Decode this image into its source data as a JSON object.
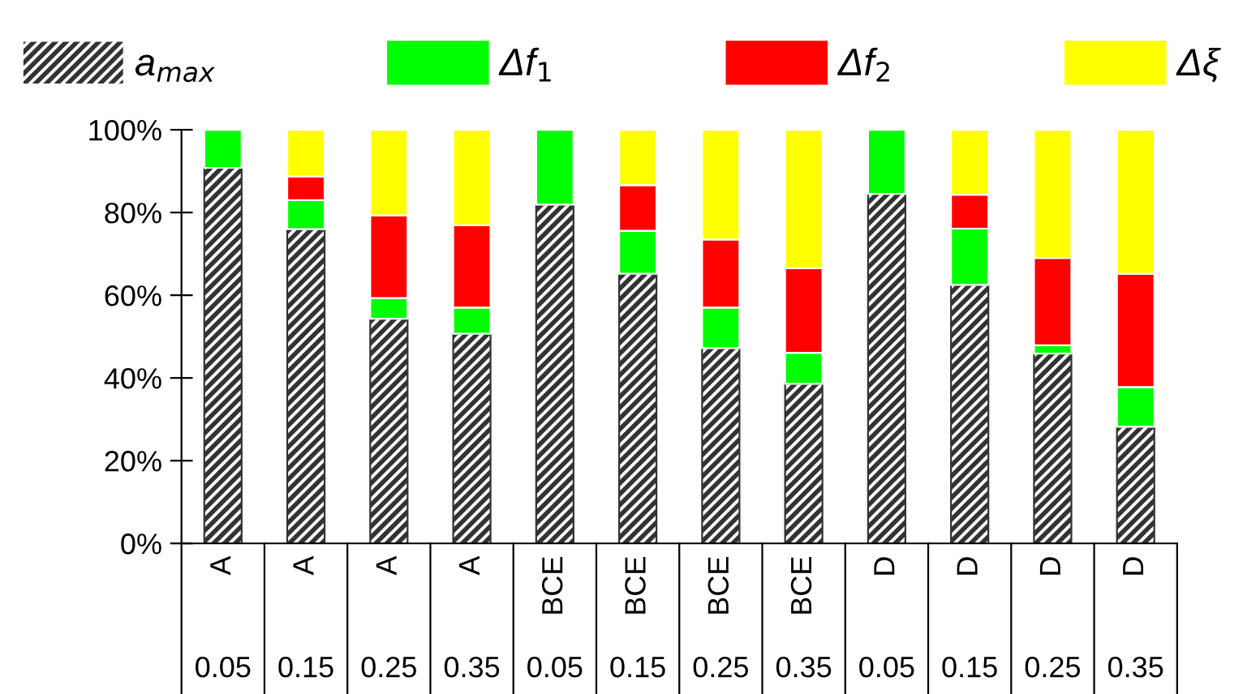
{
  "chart_data": {
    "type": "bar",
    "stacked": true,
    "categories": [
      "A\n0.05",
      "A\n0.15",
      "A\n0.25",
      "A\n0.35",
      "BCE\n0.05",
      "BCE\n0.15",
      "BCE\n0.25",
      "BCE\n0.35",
      "D\n0.05",
      "D\n0.15",
      "D\n0.25",
      "D\n0.35"
    ],
    "series": [
      {
        "name": "a$_{max}$",
        "color": "#333333",
        "values": [
          90.8,
          76.0,
          54.3,
          50.7,
          81.9,
          65.2,
          47.2,
          38.6,
          84.5,
          62.5,
          45.9,
          28.2
        ]
      },
      {
        "name": "Δf$_{1}$",
        "color": "#00ff00",
        "values": [
          9.2,
          7.0,
          5.0,
          6.3,
          18.1,
          10.4,
          9.8,
          7.5,
          15.5,
          13.6,
          2.0,
          9.6
        ]
      },
      {
        "name": "Δf$_{2}$",
        "color": "#ff0000",
        "values": [
          null,
          5.7,
          20.0,
          19.9,
          null,
          11.0,
          16.5,
          20.4,
          null,
          8.2,
          21.1,
          27.4
        ]
      },
      {
        "name": "Δξ",
        "color": "#ffff00",
        "values": [
          null,
          11.3,
          20.7,
          23.1,
          null,
          13.4,
          26.5,
          33.5,
          null,
          15.7,
          31.0,
          34.8
        ]
      }
    ],
    "ylim": [
      0,
      100
    ],
    "yticks": [
      {
        "value": 0,
        "label": "0%"
      },
      {
        "value": 20,
        "label": "20%"
      },
      {
        "value": 40,
        "label": "40%"
      },
      {
        "value": 60,
        "label": "60%"
      },
      {
        "value": 80,
        "label": "80%"
      },
      {
        "value": 100,
        "label": "100%"
      }
    ],
    "grid": false,
    "legend": "top"
  }
}
